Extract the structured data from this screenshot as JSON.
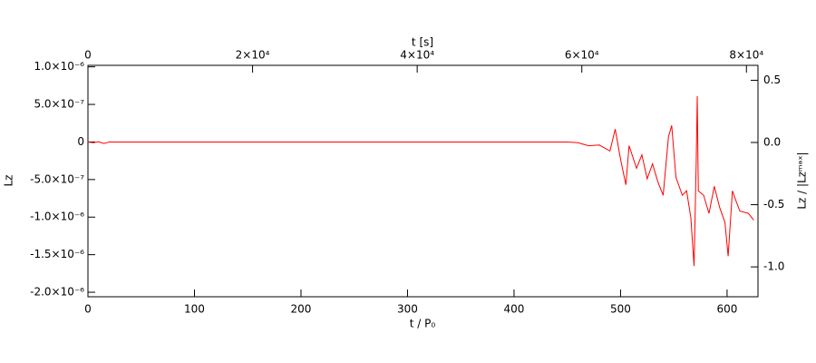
{
  "chart_data": {
    "type": "line",
    "xlabel": "t / P₀",
    "ylabel": "Lz",
    "x2label": "t [s]",
    "y2label": "Lz / |Lzᵐᵃˣ|",
    "xlim": [
      0,
      629
    ],
    "xticks": [
      0,
      100,
      200,
      300,
      400,
      500,
      600
    ],
    "x2lim": [
      0,
      81400
    ],
    "x2ticks": [
      0,
      {
        "value": 20000,
        "label": "2×10⁴"
      },
      {
        "value": 40000,
        "label": "4×10⁴"
      },
      {
        "value": 60000,
        "label": "6×10⁴"
      },
      {
        "value": 80000,
        "label": "8×10⁴"
      }
    ],
    "ylim": [
      -2.06e-06,
      1.02e-06
    ],
    "yticks": [
      {
        "value": 1e-06,
        "label": "1.0×10⁻⁶"
      },
      {
        "value": 5e-07,
        "label": "5.0×10⁻⁷"
      },
      0,
      {
        "value": -5e-07,
        "label": "-5.0×10⁻⁷"
      },
      {
        "value": -1e-06,
        "label": "-1.0×10⁻⁶"
      },
      {
        "value": -1.5e-06,
        "label": "-1.5×10⁻⁶"
      },
      {
        "value": -2e-06,
        "label": "-2.0×10⁻⁶"
      }
    ],
    "y2lim": [
      -1.24,
      0.62
    ],
    "y2ticks": [
      0.5,
      {
        "value": 0,
        "label": "0.0"
      },
      -0.5,
      {
        "value": -1,
        "label": "-1.0"
      }
    ],
    "series": [
      {
        "color": "#ff0000",
        "x": [
          0,
          5,
          10,
          15,
          20,
          60,
          150,
          160,
          300,
          450,
          460,
          470,
          480,
          485,
          490,
          495,
          500,
          505,
          508,
          515,
          520,
          525,
          530,
          535,
          540,
          545,
          548,
          552,
          558,
          562,
          566,
          569,
          571,
          572,
          573,
          578,
          583,
          588,
          593,
          598,
          601,
          605,
          608,
          612,
          620,
          625
        ],
        "values": [
          0,
          -1e-08,
          2e-09,
          -2e-08,
          0,
          0,
          0,
          0,
          0,
          0,
          -1e-08,
          -5e-08,
          -4e-08,
          -8e-08,
          -1.2e-07,
          1.7e-07,
          -2.3e-07,
          -5.7e-07,
          -5e-08,
          -3.5e-07,
          -1.7e-07,
          -4.9e-07,
          -2.9e-07,
          -5.3e-07,
          -7.1e-07,
          7e-08,
          2.2e-07,
          -4.7e-07,
          -7.1e-07,
          -6.5e-07,
          -1.01e-06,
          -1.65e-06,
          -2.9e-07,
          6.1e-07,
          -6.5e-07,
          -7.1e-07,
          -9.5e-07,
          -5.9e-07,
          -8.7e-07,
          -1.07e-06,
          -1.52e-06,
          -6.5e-07,
          -7.7e-07,
          -9.2e-07,
          -9.5e-07,
          -1.04e-06
        ]
      }
    ]
  }
}
